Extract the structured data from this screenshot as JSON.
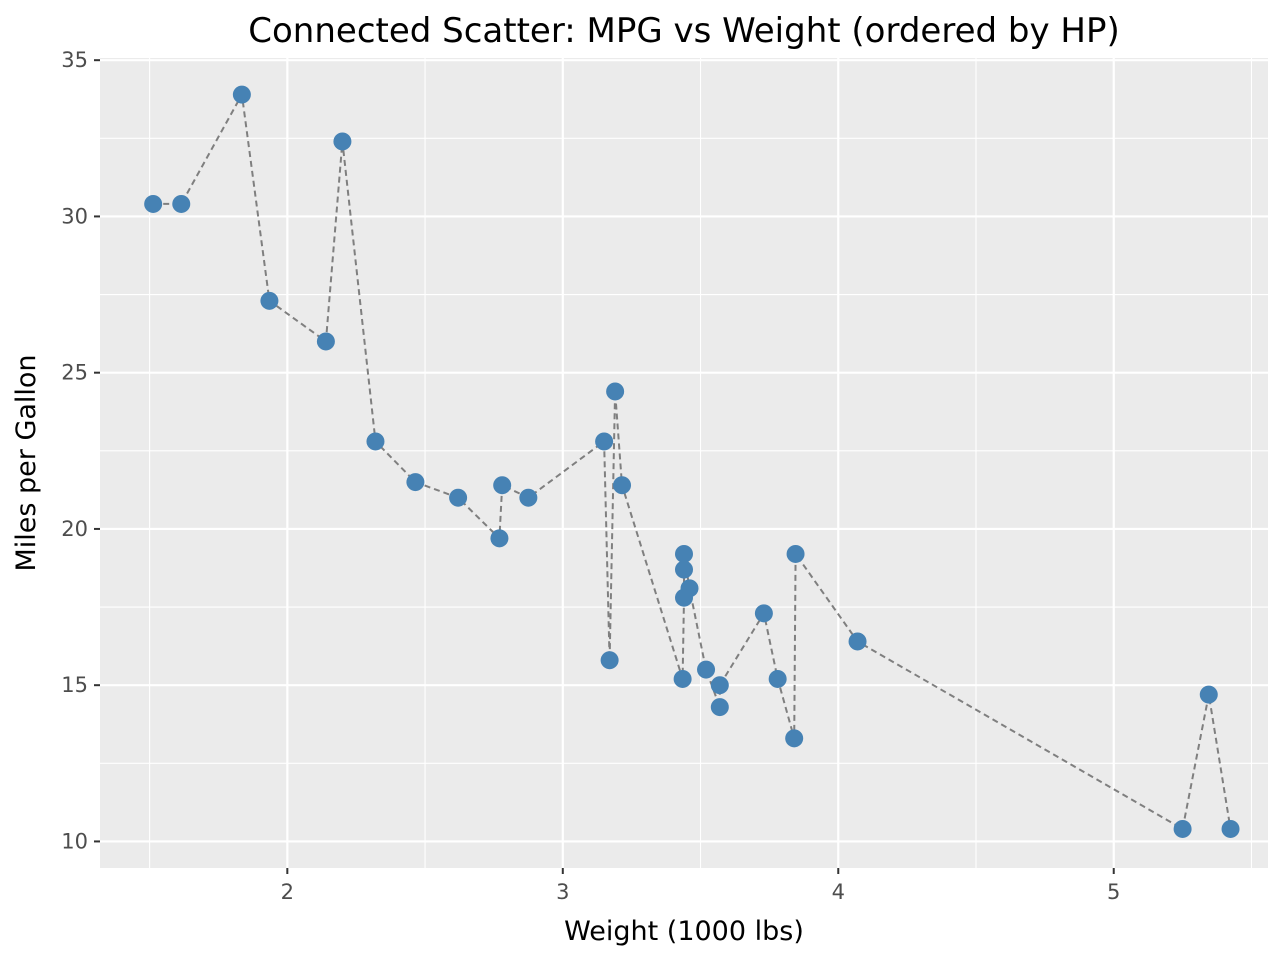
{
  "chart_data": {
    "type": "scatter",
    "title": "Connected Scatter: MPG vs Weight (ordered by HP)",
    "xlabel": "Weight (1000 lbs)",
    "ylabel": "Miles per Gallon",
    "xlim": [
      1.32,
      5.56
    ],
    "ylim": [
      9.15,
      35.07
    ],
    "xticks": [
      2,
      3,
      4,
      5
    ],
    "xtick_labels": [
      "2",
      "3",
      "4",
      "5"
    ],
    "yticks": [
      10,
      15,
      20,
      25,
      30,
      35
    ],
    "ytick_labels": [
      "10",
      "15",
      "20",
      "25",
      "30",
      "35"
    ],
    "grid": true,
    "legend": "none",
    "connected_in_order": true,
    "colors": {
      "panel": "#ebebeb",
      "gridline": "#ffffff",
      "point": "#4682b4",
      "path": "#7f7f7f",
      "tick_label": "#4d4d4d",
      "text": "#000000"
    },
    "points": [
      {
        "x": 1.513,
        "y": 30.4
      },
      {
        "x": 1.615,
        "y": 30.4
      },
      {
        "x": 1.835,
        "y": 33.9
      },
      {
        "x": 1.935,
        "y": 27.3
      },
      {
        "x": 2.14,
        "y": 26.0
      },
      {
        "x": 2.2,
        "y": 32.4
      },
      {
        "x": 2.32,
        "y": 22.8
      },
      {
        "x": 2.465,
        "y": 21.5
      },
      {
        "x": 2.62,
        "y": 21.0
      },
      {
        "x": 2.77,
        "y": 19.7
      },
      {
        "x": 2.78,
        "y": 21.4
      },
      {
        "x": 2.875,
        "y": 21.0
      },
      {
        "x": 3.15,
        "y": 22.8
      },
      {
        "x": 3.17,
        "y": 15.8
      },
      {
        "x": 3.19,
        "y": 24.4
      },
      {
        "x": 3.215,
        "y": 21.4
      },
      {
        "x": 3.435,
        "y": 15.2
      },
      {
        "x": 3.44,
        "y": 17.8
      },
      {
        "x": 3.44,
        "y": 18.7
      },
      {
        "x": 3.44,
        "y": 19.2
      },
      {
        "x": 3.46,
        "y": 18.1
      },
      {
        "x": 3.52,
        "y": 15.5
      },
      {
        "x": 3.57,
        "y": 14.3
      },
      {
        "x": 3.57,
        "y": 15.0
      },
      {
        "x": 3.73,
        "y": 17.3
      },
      {
        "x": 3.78,
        "y": 15.2
      },
      {
        "x": 3.84,
        "y": 13.3
      },
      {
        "x": 3.845,
        "y": 19.2
      },
      {
        "x": 4.07,
        "y": 16.4
      },
      {
        "x": 5.25,
        "y": 10.4
      },
      {
        "x": 5.345,
        "y": 14.7
      },
      {
        "x": 5.424,
        "y": 10.4
      }
    ]
  }
}
